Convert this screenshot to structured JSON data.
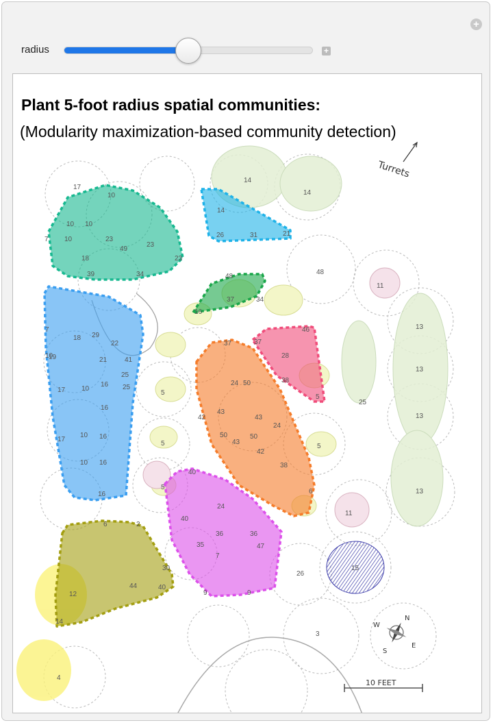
{
  "controls": {
    "slider_label": "radius",
    "slider_value_fraction": 0.5
  },
  "figure": {
    "title": "Plant 5-foot radius spatial communities:",
    "subtitle": "(Modularity maximization-based community detection)",
    "turrets_label": "Turrets",
    "scale_label": "10 FEET",
    "compass": {
      "n": "N",
      "e": "E",
      "s": "S",
      "w": "W"
    }
  },
  "communities": [
    {
      "name": "teal",
      "color": "#17b890",
      "labels": [
        "10",
        "10",
        "10",
        "23",
        "49",
        "23",
        "18",
        "39",
        "34",
        "10",
        "17",
        "7",
        "23"
      ]
    },
    {
      "name": "cyan",
      "color": "#1eb2e8",
      "labels": [
        "14",
        "26",
        "31",
        "21"
      ]
    },
    {
      "name": "green",
      "color": "#1aa64a",
      "labels": [
        "48",
        "37",
        "34",
        "16"
      ]
    },
    {
      "name": "blue",
      "color": "#3a9ef0",
      "labels": [
        "29",
        "22",
        "18",
        "21",
        "41",
        "25",
        "16",
        "10",
        "16",
        "10",
        "16",
        "10",
        "16",
        "16",
        "17",
        "17",
        "19",
        "10",
        "7"
      ]
    },
    {
      "name": "orange",
      "color": "#f57c2a",
      "labels": [
        "37",
        "24",
        "50",
        "43",
        "43",
        "42",
        "50",
        "50",
        "43",
        "42",
        "24",
        "38",
        "6"
      ]
    },
    {
      "name": "pink",
      "color": "#f04c7a",
      "labels": [
        "37",
        "46",
        "28",
        "38",
        "5"
      ]
    },
    {
      "name": "magenta",
      "color": "#dc50ea",
      "labels": [
        "40",
        "24",
        "40",
        "36",
        "36",
        "35",
        "47",
        "7",
        "9",
        "9"
      ]
    },
    {
      "name": "olive",
      "color": "#a39e10",
      "labels": [
        "6",
        "2",
        "30",
        "44",
        "12",
        "40",
        "14"
      ]
    }
  ],
  "plan_labels": [
    "14",
    "14",
    "48",
    "11",
    "13",
    "13",
    "25",
    "13",
    "13",
    "11",
    "15",
    "26",
    "3",
    "4",
    "5",
    "5",
    "5",
    "25",
    "5"
  ]
}
